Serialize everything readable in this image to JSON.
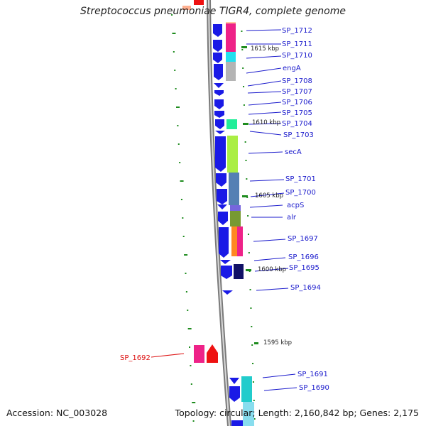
{
  "title": "Streptococcus pneumoniae TIGR4, complete genome",
  "footer": {
    "accession": "Accession: NC_003028",
    "summary": "Topology: circular; Length: 2,160,842 bp; Genes: 2,175"
  },
  "scale_labels": [
    "1615 kbp",
    "1610 kbp",
    "1605 kbp",
    "1600 kbp",
    "1595 kbp"
  ],
  "gene_labels": [
    "SP_1712",
    "SP_1711",
    "SP_1710",
    "engA",
    "SP_1708",
    "SP_1707",
    "SP_1706",
    "SP_1705",
    "SP_1704",
    "SP_1703",
    "secA",
    "SP_1701",
    "SP_1700",
    "acpS",
    "alr",
    "SP_1697",
    "SP_1696",
    "SP_1695",
    "SP_1694",
    "SP_1692",
    "SP_1691",
    "SP_1690"
  ],
  "colors": {
    "strand_arrow": "#1a1ae6",
    "label_blue": "#1a1acc",
    "label_red": "#dd1111",
    "tick_green": "#1e8c1e",
    "backbone": "#7a7a7a"
  }
}
